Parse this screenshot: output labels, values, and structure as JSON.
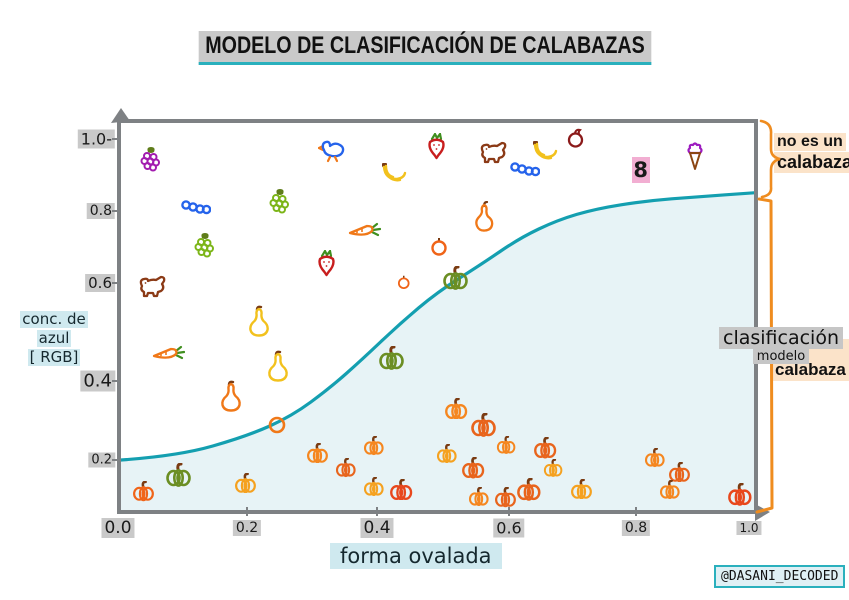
{
  "title": "MODELO DE CLASIFICACIÓN DE CALABAZAS",
  "axes": {
    "x_label": "forma ovalada",
    "y_label_lines": [
      "conc. de",
      "azul",
      "[ RGB]"
    ],
    "x_ticks": [
      "0.0",
      "0.2",
      "0.4",
      "0.6",
      "0.8",
      "1.0"
    ],
    "y_ticks": [
      "1.0-",
      "0.8",
      "0.6",
      "0.4",
      "0.2"
    ]
  },
  "annotations": {
    "curve_label_line1": "clasificación",
    "curve_label_line2": "modelo",
    "right_top_line1": "no es un",
    "right_top_line2": "calabaza",
    "right_bottom": "- calabaza"
  },
  "watermark": "@DASANI_DECODED",
  "colors": {
    "curve": "#149fb0",
    "curve_fill": "#e7f3f6",
    "axis": "#7e8184",
    "tick_bg": "#c9c9c9",
    "axis_title_bg": "#cfe9ef",
    "bracket": "#ef8c1f",
    "bracket_label_bg": "#fbe3c9",
    "title_underline": "#2ab0bd",
    "eight_bg": "#f2aed2"
  },
  "chart_data": {
    "type": "scatter",
    "title": "MODELO DE CLASIFICACIÓN DE CALABAZAS",
    "xlabel": "forma ovalada",
    "ylabel": "conc. de azul [RGB]",
    "xlim": [
      0.0,
      1.0
    ],
    "ylim": [
      0.0,
      1.05
    ],
    "grid": false,
    "curve": {
      "name": "clasificación modelo",
      "color": "#149fb0",
      "points": [
        [
          0.0,
          0.2
        ],
        [
          0.09,
          0.21
        ],
        [
          0.2,
          0.26
        ],
        [
          0.27,
          0.31
        ],
        [
          0.33,
          0.38
        ],
        [
          0.38,
          0.45
        ],
        [
          0.44,
          0.54
        ],
        [
          0.5,
          0.62
        ],
        [
          0.57,
          0.69
        ],
        [
          0.63,
          0.755
        ],
        [
          0.69,
          0.8
        ],
        [
          0.75,
          0.828
        ],
        [
          0.83,
          0.848
        ],
        [
          0.91,
          0.858
        ],
        [
          1.0,
          0.868
        ]
      ]
    },
    "series": [
      {
        "name": "no es un calabaza",
        "points": [
          {
            "icon": "grapes",
            "color": "#a21caf",
            "x": 0.047,
            "y": 0.95
          },
          {
            "icon": "caterpillar",
            "color": "#2563eb",
            "x": 0.118,
            "y": 0.833
          },
          {
            "icon": "grapes",
            "color": "#7cb518",
            "x": 0.251,
            "y": 0.846
          },
          {
            "icon": "grapes",
            "color": "#7cb518",
            "x": 0.133,
            "y": 0.734
          },
          {
            "icon": "duck",
            "color": "#2563eb",
            "x": 0.334,
            "y": 0.975
          },
          {
            "icon": "strawberry",
            "color": "#c81e1e",
            "x": 0.325,
            "y": 0.692
          },
          {
            "icon": "dog",
            "color": "#8b3a16",
            "x": 0.05,
            "y": 0.635
          },
          {
            "icon": "bananas",
            "color": "#f2c11d",
            "x": 0.429,
            "y": 0.916
          },
          {
            "icon": "strawberry",
            "color": "#c81e1e",
            "x": 0.499,
            "y": 0.985
          },
          {
            "icon": "dog",
            "color": "#8b3a16",
            "x": 0.589,
            "y": 0.97
          },
          {
            "icon": "caterpillar",
            "color": "#2563eb",
            "x": 0.639,
            "y": 0.928
          },
          {
            "icon": "bananas",
            "color": "#f2c11d",
            "x": 0.667,
            "y": 0.972
          },
          {
            "icon": "apple",
            "color": "#8b1a1a",
            "x": 0.719,
            "y": 1.005
          },
          {
            "icon": "eight",
            "label": "8",
            "color": "#1a1a1a",
            "x": 0.821,
            "y": 0.925
          },
          {
            "icon": "icecream",
            "color": "#9c1bbf",
            "x": 0.907,
            "y": 0.96
          },
          {
            "icon": "carrot",
            "color": "#f07818",
            "x": 0.385,
            "y": 0.776
          },
          {
            "icon": "pear",
            "color": "#f07818",
            "x": 0.573,
            "y": 0.809
          },
          {
            "icon": "tomato",
            "color": "#f06418",
            "x": 0.502,
            "y": 0.734
          },
          {
            "icon": "tomato",
            "color": "#f06418",
            "x": 0.446,
            "y": 0.645,
            "s": 0.75
          },
          {
            "icon": "carrot",
            "color": "#f07818",
            "x": 0.075,
            "y": 0.468
          },
          {
            "icon": "gourd",
            "color": "#f2c11d",
            "x": 0.218,
            "y": 0.548
          },
          {
            "icon": "gourd",
            "color": "#f2c11d",
            "x": 0.248,
            "y": 0.436
          },
          {
            "icon": "gourd",
            "color": "#f07818",
            "x": 0.174,
            "y": 0.361
          },
          {
            "icon": "circle",
            "color": "#f07818",
            "x": 0.246,
            "y": 0.287
          },
          {
            "icon": "pumpkin",
            "color": "#6b8e23",
            "x": 0.529,
            "y": 0.655
          },
          {
            "icon": "pumpkin",
            "color": "#6b8e23",
            "x": 0.427,
            "y": 0.456
          }
        ]
      },
      {
        "name": "calabaza",
        "points": [
          {
            "icon": "pumpkin",
            "color": "#f06418",
            "x": 0.036,
            "y": 0.121,
            "s": 0.85
          },
          {
            "icon": "pumpkin",
            "color": "#6b8e23",
            "x": 0.091,
            "y": 0.163
          },
          {
            "icon": "pumpkin",
            "color": "#f5a11f",
            "x": 0.196,
            "y": 0.143,
            "s": 0.85
          },
          {
            "icon": "pumpkin",
            "color": "#f5861f",
            "x": 0.311,
            "y": 0.217,
            "s": 0.85
          },
          {
            "icon": "pumpkin",
            "color": "#e8641c",
            "x": 0.355,
            "y": 0.18,
            "s": 0.8
          },
          {
            "icon": "pumpkin",
            "color": "#f5861f",
            "x": 0.4,
            "y": 0.235,
            "s": 0.8
          },
          {
            "icon": "pumpkin",
            "color": "#f5a11f",
            "x": 0.4,
            "y": 0.133,
            "s": 0.8
          },
          {
            "icon": "pumpkin",
            "color": "#e8471c",
            "x": 0.443,
            "y": 0.126,
            "s": 0.9
          },
          {
            "icon": "pumpkin",
            "color": "#f5861f",
            "x": 0.529,
            "y": 0.329,
            "s": 0.9
          },
          {
            "icon": "pumpkin",
            "color": "#e8641c",
            "x": 0.573,
            "y": 0.287
          },
          {
            "icon": "pumpkin",
            "color": "#f5a11f",
            "x": 0.515,
            "y": 0.217,
            "s": 0.8
          },
          {
            "icon": "pumpkin",
            "color": "#e8641c",
            "x": 0.557,
            "y": 0.18,
            "s": 0.9
          },
          {
            "icon": "pumpkin",
            "color": "#f5861f",
            "x": 0.609,
            "y": 0.237,
            "s": 0.75
          },
          {
            "icon": "pumpkin",
            "color": "#e8641c",
            "x": 0.67,
            "y": 0.23,
            "s": 0.9
          },
          {
            "icon": "pumpkin",
            "color": "#f5a11f",
            "x": 0.683,
            "y": 0.18,
            "s": 0.75
          },
          {
            "icon": "pumpkin",
            "color": "#f5861f",
            "x": 0.565,
            "y": 0.108,
            "s": 0.8
          },
          {
            "icon": "pumpkin",
            "color": "#e8641c",
            "x": 0.608,
            "y": 0.106,
            "s": 0.85
          },
          {
            "icon": "pumpkin",
            "color": "#e8641c",
            "x": 0.644,
            "y": 0.126,
            "s": 0.95
          },
          {
            "icon": "pumpkin",
            "color": "#f5a11f",
            "x": 0.727,
            "y": 0.128,
            "s": 0.85
          },
          {
            "icon": "pumpkin",
            "color": "#f5861f",
            "x": 0.843,
            "y": 0.205,
            "s": 0.8
          },
          {
            "icon": "pumpkin",
            "color": "#e8641c",
            "x": 0.882,
            "y": 0.17,
            "s": 0.85
          },
          {
            "icon": "pumpkin",
            "color": "#f5861f",
            "x": 0.867,
            "y": 0.126,
            "s": 0.8
          },
          {
            "icon": "pumpkin",
            "color": "#e8471c",
            "x": 0.978,
            "y": 0.113,
            "s": 0.95
          }
        ]
      }
    ]
  }
}
